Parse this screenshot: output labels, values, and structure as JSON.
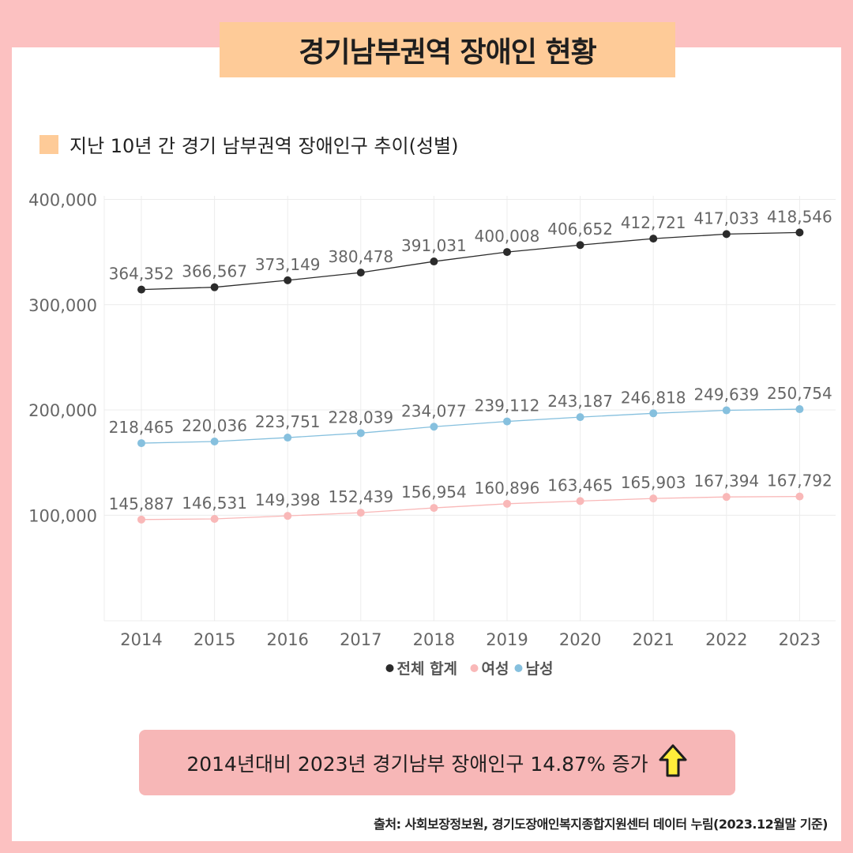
{
  "title": "경기남부권역 장애인 현황",
  "section_label": "지난 10년 간 경기 남부권역 장애인구 추이(성별)",
  "section_swatch_color": "#fecb98",
  "chart_data": {
    "type": "line",
    "x": [
      "2014",
      "2015",
      "2016",
      "2017",
      "2018",
      "2019",
      "2020",
      "2021",
      "2022",
      "2023"
    ],
    "yticks": [
      "100,000",
      "200,000",
      "300,000",
      "400,000"
    ],
    "ylim": [
      50000,
      450000
    ],
    "grid": true,
    "legend_position": "bottom",
    "series": [
      {
        "name": "전체 합계",
        "color": "#2b2b2b",
        "values": [
          364352,
          366567,
          373149,
          380478,
          391031,
          400008,
          406652,
          412721,
          417033,
          418546
        ],
        "labels": [
          "364,352",
          "366,567",
          "373,149",
          "380,478",
          "391,031",
          "400,008",
          "406,652",
          "412,721",
          "417,033",
          "418,546"
        ]
      },
      {
        "name": "여성",
        "color": "#f9b8b8",
        "values": [
          145887,
          146531,
          149398,
          152439,
          156954,
          160896,
          163465,
          165903,
          167394,
          167792
        ],
        "labels": [
          "145,887",
          "146,531",
          "149,398",
          "152,439",
          "156,954",
          "160,896",
          "163,465",
          "165,903",
          "167,394",
          "167,792"
        ]
      },
      {
        "name": "남성",
        "color": "#86c0de",
        "values": [
          218465,
          220036,
          223751,
          228039,
          234077,
          239112,
          243187,
          246818,
          249639,
          250754
        ],
        "labels": [
          "218,465",
          "220,036",
          "223,751",
          "228,039",
          "234,077",
          "239,112",
          "243,187",
          "246,818",
          "249,639",
          "250,754"
        ]
      }
    ]
  },
  "note": "2014년대비 2023년 경기남부 장애인구 14.87% 증가",
  "note_icon": "up-arrow-icon",
  "source": "출처: 사회보장정보원, 경기도장애인복지종합지원센터 데이터 누림(2023.12월말 기준)"
}
